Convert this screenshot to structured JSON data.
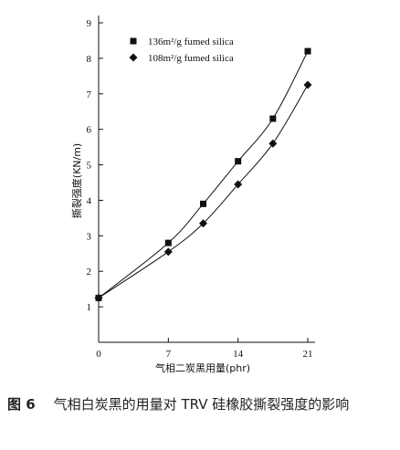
{
  "chart_data": {
    "type": "scatter",
    "xlabel": "气相二炭黑用量(phr)",
    "ylabel": "撕裂强度(KN/m)",
    "xlim": [
      0,
      21
    ],
    "ylim": [
      0,
      9
    ],
    "x_ticks": [
      0,
      7,
      14,
      21
    ],
    "y_ticks": [
      1,
      2,
      3,
      4,
      5,
      6,
      7,
      8,
      9
    ],
    "grid": false,
    "legend_position": "top-left",
    "series": [
      {
        "name": "136m²/g fumed silica",
        "marker": "square",
        "fit_line": true,
        "x": [
          0,
          7,
          10.5,
          14,
          17.5,
          21
        ],
        "y": [
          1.25,
          2.8,
          3.9,
          5.1,
          6.3,
          8.2
        ]
      },
      {
        "name": "108m²/g fumed silica",
        "marker": "diamond",
        "fit_line": true,
        "x": [
          0,
          7,
          10.5,
          14,
          17.5,
          21
        ],
        "y": [
          1.25,
          2.55,
          3.35,
          4.45,
          5.6,
          7.25
        ]
      }
    ]
  },
  "caption": {
    "label": "图 6",
    "text": "气相白炭黑的用量对 TRV 硅橡胶撕裂强度的影响"
  }
}
